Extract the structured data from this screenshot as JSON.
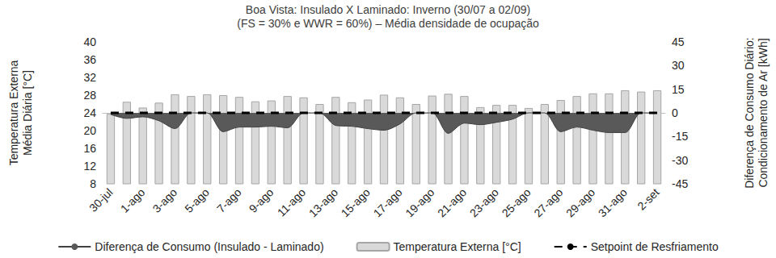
{
  "chart_data": {
    "type": "bar",
    "title": "Boa Vista: Insulado X Laminado: Inverno (30/07 a 02/09)",
    "subtitle": "(FS = 30% e WWR = 60%) – Média densidade de ocupação",
    "y_label": "Temperatura Externa\nMédia Diária [°C]",
    "y2_label": "Diferença de Consumo Diário:\nCondicionamento de Ar [kWh]",
    "categories": [
      "30-jul",
      null,
      "1-ago",
      null,
      "3-ago",
      null,
      "5-ago",
      null,
      "7-ago",
      null,
      "9-ago",
      null,
      "11-ago",
      null,
      "13-ago",
      null,
      "15-ago",
      null,
      "17-ago",
      null,
      "19-ago",
      null,
      "21-ago",
      null,
      "23-ago",
      null,
      "25-ago",
      null,
      "27-ago",
      null,
      "29-ago",
      null,
      "31-ago",
      null,
      "2-set"
    ],
    "series": [
      {
        "name": "Diferença de Consumo (Insulado - Laminado)",
        "type": "area",
        "axis": "y2",
        "color": "#595959",
        "values": [
          -1,
          -3.5,
          -2.5,
          -5,
          -10,
          0,
          0,
          -12,
          -9,
          -9,
          -8.5,
          -9.5,
          0,
          0,
          -8,
          -8.5,
          -10,
          -11,
          -7,
          0,
          0,
          -13,
          -6.5,
          -7.5,
          -6,
          -4,
          0,
          0,
          -12,
          -9,
          -11,
          -12.5,
          -12.5,
          0,
          0
        ]
      },
      {
        "name": "Temperatura Externa [°C]",
        "type": "bar",
        "color": "#d9d9d9",
        "values": [
          23.8,
          26.5,
          25.2,
          26.3,
          28.2,
          27.8,
          28.2,
          28.0,
          27.6,
          26.6,
          26.8,
          27.8,
          27.5,
          26.0,
          27.6,
          26.4,
          27.0,
          28.1,
          27.5,
          26.0,
          27.9,
          28.3,
          27.8,
          25.3,
          25.8,
          25.8,
          25.1,
          26.0,
          26.9,
          27.8,
          28.4,
          28.4,
          29.1,
          28.8,
          29.1
        ]
      },
      {
        "name": "Setpoint de Resfriamento",
        "type": "line",
        "color": "#000000",
        "line_style": "dashed",
        "values": [
          24,
          24,
          24,
          24,
          24,
          24,
          24,
          24,
          24,
          24,
          24,
          24,
          24,
          24,
          24,
          24,
          24,
          24,
          24,
          24,
          24,
          24,
          24,
          24,
          24,
          24,
          24,
          24,
          24,
          24,
          24,
          24,
          24,
          24,
          24
        ]
      }
    ],
    "ylim": [
      8,
      40
    ],
    "yticks": [
      8,
      12,
      16,
      20,
      24,
      28,
      32,
      36,
      40
    ],
    "y2lim": [
      -45,
      45
    ],
    "y2ticks": [
      -45,
      -30,
      -15,
      0,
      15,
      30,
      45
    ],
    "grid": false,
    "legend": "bottom"
  }
}
